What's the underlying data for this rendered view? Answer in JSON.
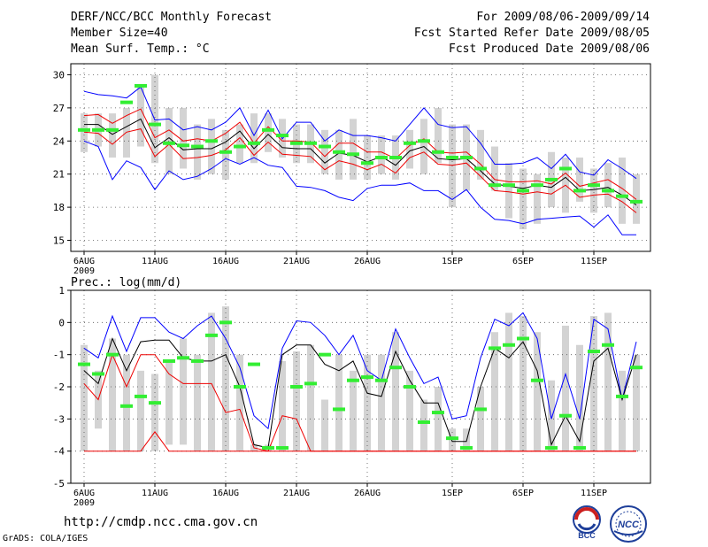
{
  "header": {
    "title": "DERF/NCC/BCC Monthly Forecast",
    "member_size": "Member Size=40",
    "variable": "Mean Surf. Temp.: °C",
    "period": "For 2009/08/06-2009/09/14",
    "start_date": "Fcst Started Refer Date 2009/08/05",
    "produced_date": "Fcst Produced Date 2009/08/06"
  },
  "footer": {
    "url": "http://cmdp.ncc.cma.gov.cn",
    "credit": "GrADS: COLA/IGES",
    "logos": [
      {
        "name": "bcc-logo",
        "text": "BCC"
      },
      {
        "name": "ncc-logo",
        "text": "NCC"
      }
    ]
  },
  "colors": {
    "box": "#d3d3d3",
    "marker": "#33ee33",
    "extreme": "#0000ff",
    "spread": "#ee0000",
    "mean": "#000000",
    "grid": "#555555"
  },
  "chart_data": [
    {
      "type": "line",
      "title": "Mean Surf. Temp.: °C",
      "ylim": [
        14,
        31
      ],
      "yticks": [
        15,
        18,
        21,
        24,
        27,
        30
      ],
      "xtick_labels": [
        {
          "day": 0,
          "label": "6AUG",
          "sub": "2009"
        },
        {
          "day": 5,
          "label": "11AUG"
        },
        {
          "day": 10,
          "label": "16AUG"
        },
        {
          "day": 15,
          "label": "21AUG"
        },
        {
          "day": 20,
          "label": "26AUG"
        },
        {
          "day": 26,
          "label": "1SEP"
        },
        {
          "day": 31,
          "label": "6SEP"
        },
        {
          "day": 36,
          "label": "11SEP"
        }
      ],
      "days": [
        0,
        1,
        2,
        3,
        4,
        5,
        6,
        7,
        8,
        9,
        10,
        11,
        12,
        13,
        14,
        15,
        16,
        17,
        18,
        19,
        20,
        21,
        22,
        23,
        24,
        25,
        26,
        27,
        28,
        29,
        30,
        31,
        32,
        33,
        34,
        35,
        36,
        37,
        38,
        39
      ],
      "box_low": [
        23.0,
        23.5,
        22.5,
        22.5,
        23.5,
        22.0,
        21.0,
        21.5,
        20.5,
        21.0,
        20.5,
        22.0,
        22.0,
        23.0,
        22.5,
        22.0,
        22.0,
        21.0,
        20.5,
        20.5,
        20.5,
        21.0,
        20.5,
        21.5,
        21.0,
        22.0,
        18.0,
        19.5,
        20.5,
        19.5,
        17.0,
        16.0,
        16.5,
        18.0,
        17.5,
        18.5,
        17.5,
        18.0,
        16.5,
        16.5
      ],
      "box_high": [
        26.5,
        26.5,
        26.5,
        27.0,
        29.0,
        30.0,
        27.0,
        27.0,
        25.5,
        26.0,
        25.0,
        25.5,
        26.5,
        26.5,
        26.0,
        25.5,
        25.5,
        25.0,
        25.0,
        26.0,
        24.5,
        24.5,
        24.5,
        25.0,
        26.0,
        27.0,
        25.5,
        25.5,
        25.0,
        23.5,
        22.0,
        21.5,
        21.0,
        23.0,
        22.5,
        22.5,
        21.5,
        22.0,
        22.5,
        21.0
      ],
      "marker": [
        25.0,
        25.0,
        25.0,
        27.5,
        29.0,
        25.5,
        23.8,
        23.6,
        23.5,
        24.0,
        23.0,
        23.5,
        23.8,
        25.0,
        24.5,
        23.8,
        23.8,
        23.5,
        23.0,
        22.8,
        22.0,
        22.5,
        22.5,
        23.8,
        24.0,
        23.0,
        22.5,
        22.5,
        21.5,
        20.0,
        20.0,
        19.5,
        20.0,
        20.5,
        21.5,
        19.5,
        20.0,
        19.5,
        19.0,
        18.5
      ],
      "series": [
        {
          "name": "max",
          "color": "#0000ff",
          "values": [
            28.5,
            28.2,
            28.1,
            27.9,
            28.9,
            25.9,
            26.0,
            25.0,
            25.3,
            25.0,
            25.7,
            27.0,
            24.5,
            26.8,
            24.2,
            25.7,
            25.7,
            24.0,
            25.0,
            24.5,
            24.5,
            24.3,
            24.0,
            25.5,
            27.0,
            25.5,
            25.2,
            25.3,
            23.8,
            21.9,
            21.9,
            22.0,
            22.5,
            21.5,
            22.8,
            21.2,
            20.9,
            22.3,
            21.5,
            20.6
          ]
        },
        {
          "name": "upper",
          "color": "#ee0000",
          "values": [
            26.3,
            26.4,
            25.6,
            26.3,
            26.9,
            24.3,
            25.0,
            24.0,
            24.2,
            24.0,
            24.7,
            25.7,
            23.8,
            25.3,
            24.0,
            24.0,
            23.9,
            22.6,
            23.8,
            23.8,
            23.0,
            23.0,
            22.4,
            23.6,
            24.2,
            23.0,
            22.9,
            23.0,
            21.9,
            20.5,
            20.3,
            20.3,
            20.4,
            20.1,
            21.1,
            19.9,
            20.2,
            20.5,
            19.7,
            18.7
          ]
        },
        {
          "name": "mean",
          "color": "#000000",
          "values": [
            25.5,
            25.5,
            24.6,
            25.3,
            26.0,
            23.4,
            24.3,
            23.2,
            23.3,
            23.3,
            23.9,
            24.9,
            23.3,
            24.6,
            23.4,
            23.3,
            23.3,
            22.0,
            22.9,
            22.7,
            22.1,
            22.6,
            21.8,
            23.1,
            23.5,
            22.4,
            22.3,
            22.4,
            21.3,
            20.1,
            19.9,
            19.7,
            20.0,
            19.8,
            20.7,
            19.5,
            19.6,
            19.8,
            19.1,
            18.2
          ]
        },
        {
          "name": "lower",
          "color": "#ee0000",
          "values": [
            24.8,
            24.7,
            23.7,
            24.8,
            25.1,
            22.6,
            23.7,
            22.4,
            22.5,
            22.7,
            23.2,
            24.3,
            22.7,
            23.9,
            22.8,
            22.7,
            22.6,
            21.4,
            22.2,
            21.9,
            21.4,
            21.9,
            21.1,
            22.5,
            23.0,
            21.9,
            21.8,
            22.0,
            20.8,
            19.5,
            19.4,
            19.2,
            19.4,
            19.2,
            20.0,
            18.9,
            19.1,
            19.2,
            18.5,
            17.5
          ]
        },
        {
          "name": "min",
          "color": "#0000ff",
          "values": [
            24.0,
            23.5,
            20.5,
            22.2,
            21.6,
            19.6,
            21.3,
            20.5,
            20.8,
            21.5,
            22.4,
            21.9,
            22.5,
            21.8,
            21.6,
            19.9,
            19.8,
            19.5,
            18.9,
            18.6,
            19.7,
            20.0,
            20.0,
            20.2,
            19.5,
            19.5,
            18.7,
            19.6,
            18.0,
            16.9,
            16.8,
            16.5,
            16.9,
            17.0,
            17.1,
            17.2,
            16.2,
            17.3,
            15.5,
            15.5
          ]
        }
      ]
    },
    {
      "type": "line",
      "title": "Prec.: log(mm/d)",
      "ylim": [
        -5,
        1
      ],
      "yticks": [
        -5,
        -4,
        -3,
        -2,
        -1,
        0,
        1
      ],
      "xtick_labels": [
        {
          "day": 0,
          "label": "6AUG",
          "sub": "2009"
        },
        {
          "day": 5,
          "label": "11AUG"
        },
        {
          "day": 10,
          "label": "16AUG"
        },
        {
          "day": 15,
          "label": "21AUG"
        },
        {
          "day": 20,
          "label": "26AUG"
        },
        {
          "day": 26,
          "label": "1SEP"
        },
        {
          "day": 31,
          "label": "6SEP"
        },
        {
          "day": 36,
          "label": "11SEP"
        }
      ],
      "days": [
        0,
        1,
        2,
        3,
        4,
        5,
        6,
        7,
        8,
        9,
        10,
        11,
        12,
        13,
        14,
        15,
        16,
        17,
        18,
        19,
        20,
        21,
        22,
        23,
        24,
        25,
        26,
        27,
        28,
        29,
        30,
        31,
        32,
        33,
        34,
        35,
        36,
        37,
        38,
        39
      ],
      "box_low": [
        -4.0,
        -3.3,
        -4.0,
        -4.0,
        -4.0,
        -4.0,
        -3.8,
        -3.8,
        -4.0,
        -4.0,
        -4.0,
        -4.0,
        -4.0,
        -4.0,
        -4.0,
        -4.0,
        -4.0,
        -4.0,
        -4.0,
        -4.0,
        -4.0,
        -4.0,
        -4.0,
        -4.0,
        -4.0,
        -4.0,
        -4.0,
        -4.0,
        -4.0,
        -4.0,
        -4.0,
        -4.0,
        -4.0,
        -4.0,
        -4.0,
        -4.0,
        -4.0,
        -4.0,
        -4.0,
        -4.0
      ],
      "box_high": [
        -0.7,
        -1.5,
        -0.5,
        -1.0,
        -1.5,
        -1.6,
        -1.2,
        -0.5,
        -1.0,
        0.3,
        0.5,
        -1.0,
        -3.8,
        -3.8,
        -1.2,
        -0.9,
        -0.7,
        -2.4,
        -1.0,
        -1.5,
        -1.0,
        -1.0,
        -0.3,
        -1.5,
        -2.4,
        -2.0,
        -3.3,
        -3.3,
        -2.0,
        -0.3,
        0.3,
        0.2,
        -0.3,
        -1.8,
        -0.1,
        -0.7,
        0.2,
        0.3,
        -1.5,
        -1.0
      ],
      "marker": [
        -1.3,
        -1.6,
        -1.0,
        -2.6,
        -2.3,
        -2.5,
        -1.2,
        -1.1,
        -1.2,
        -0.4,
        0.0,
        -2.0,
        -1.3,
        -3.9,
        -3.9,
        -2.0,
        -1.9,
        -1.0,
        -2.7,
        -1.8,
        -1.7,
        -1.8,
        -1.4,
        -2.0,
        -3.1,
        -2.8,
        -3.6,
        -3.9,
        -2.7,
        -0.8,
        -0.7,
        -0.5,
        -1.8,
        -3.9,
        -2.9,
        -3.9,
        -0.9,
        -0.7,
        -2.3,
        -1.4
      ],
      "series": [
        {
          "name": "max",
          "color": "#0000ff",
          "values": [
            -0.8,
            -1.1,
            0.2,
            -0.9,
            0.15,
            0.15,
            -0.3,
            -0.5,
            -0.1,
            0.2,
            -0.5,
            -1.4,
            -2.9,
            -3.3,
            -0.8,
            0.05,
            0.0,
            -0.4,
            -1.0,
            -0.4,
            -1.5,
            -1.8,
            -0.2,
            -1.1,
            -1.9,
            -1.7,
            -3.0,
            -2.9,
            -1.1,
            0.1,
            -0.1,
            0.3,
            -0.5,
            -3.0,
            -1.6,
            -3.0,
            0.1,
            -0.2,
            -2.4,
            -0.6
          ]
        },
        {
          "name": "mean",
          "color": "#000000",
          "values": [
            -1.5,
            -1.9,
            -0.5,
            -1.5,
            -0.6,
            -0.55,
            -0.55,
            -1.1,
            -1.2,
            -1.2,
            -1.0,
            -2.0,
            -3.8,
            -3.9,
            -1.0,
            -0.7,
            -0.7,
            -1.3,
            -1.5,
            -1.2,
            -2.2,
            -2.3,
            -0.9,
            -1.8,
            -2.5,
            -2.5,
            -3.7,
            -3.7,
            -2.0,
            -0.8,
            -1.1,
            -0.6,
            -1.5,
            -3.8,
            -2.9,
            -3.7,
            -1.2,
            -0.8,
            -2.4,
            -1.0
          ]
        },
        {
          "name": "lower",
          "color": "#ee0000",
          "values": [
            -1.9,
            -2.4,
            -1.0,
            -2.0,
            -1.0,
            -1.0,
            -1.6,
            -1.9,
            -1.9,
            -1.9,
            -2.8,
            -2.7,
            -3.9,
            -4.0,
            -2.9,
            -3.0,
            -4.0,
            -4.0,
            -4.0,
            -4.0,
            -4.0,
            -4.0,
            -4.0,
            -4.0,
            -4.0,
            -4.0,
            -4.0,
            -4.0,
            -4.0,
            -4.0,
            -4.0,
            -4.0,
            -4.0,
            -4.0,
            -4.0,
            -4.0,
            -4.0,
            -4.0,
            -4.0,
            -4.0
          ]
        },
        {
          "name": "min",
          "color": "#ee0000",
          "values": [
            -4.0,
            -4.0,
            -4.0,
            -4.0,
            -4.0,
            -3.4,
            -4.0,
            -4.0,
            -4.0,
            -4.0,
            -4.0,
            -4.0,
            -4.0,
            -4.0,
            -4.0,
            -4.0,
            -4.0,
            -4.0,
            -4.0,
            -4.0,
            -4.0,
            -4.0,
            -4.0,
            -4.0,
            -4.0,
            -4.0,
            -4.0,
            -4.0,
            -4.0,
            -4.0,
            -4.0,
            -4.0,
            -4.0,
            -4.0,
            -4.0,
            -4.0,
            -4.0,
            -4.0,
            -4.0,
            -4.0
          ]
        }
      ]
    }
  ]
}
